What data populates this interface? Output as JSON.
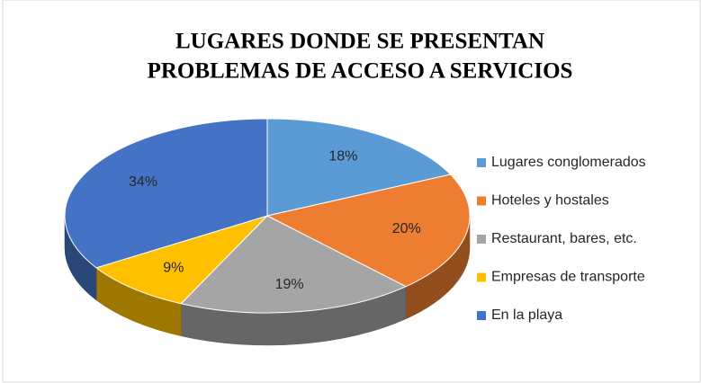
{
  "chart_data": {
    "type": "pie",
    "title": [
      "LUGARES DONDE SE PRESENTAN",
      "PROBLEMAS DE ACCESO  A SERVICIOS"
    ],
    "categories": [
      "Lugares conglomerados",
      "Hoteles y hostales",
      "Restaurant, bares, etc.",
      "Empresas de transporte",
      "En la playa"
    ],
    "values": [
      18,
      20,
      19,
      9,
      34
    ],
    "value_labels": [
      "18%",
      "20%",
      "19%",
      "9%",
      "34%"
    ],
    "colors": [
      "#5b9bd5",
      "#ed7d31",
      "#a5a5a5",
      "#ffc000",
      "#4472c4"
    ],
    "legend": "right"
  }
}
